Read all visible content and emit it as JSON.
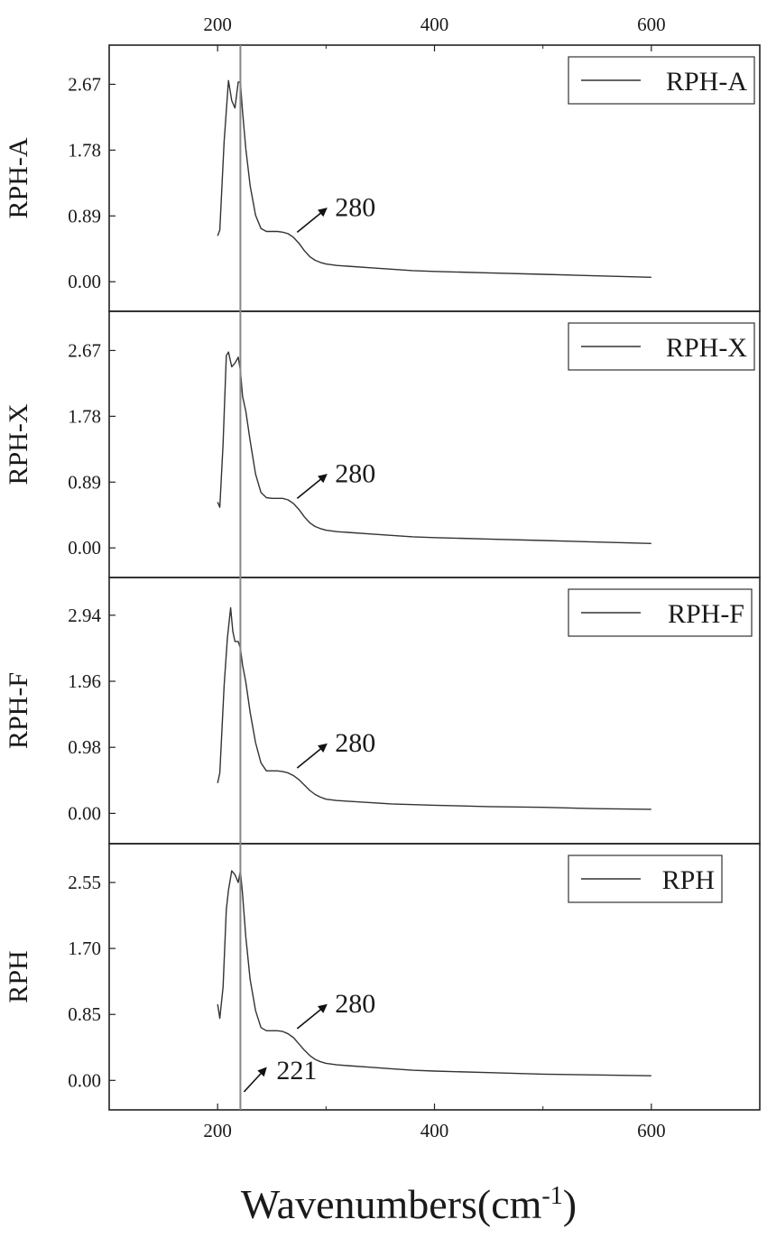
{
  "chart_data": {
    "type": "line",
    "xlabel": "Wavenumbers(cm-1)",
    "xlabel_main": "Wavenumbers(cm",
    "xlabel_sup": "-1",
    "xlabel_close": ")",
    "xlim": [
      100,
      700
    ],
    "xticks": [
      200,
      400,
      600
    ],
    "xtick_labels": [
      "200",
      "400",
      "600"
    ],
    "reference_line_x": 221,
    "annotations": [
      {
        "text": "221",
        "panel": 3
      }
    ],
    "panels": [
      {
        "ylabel": "RPH-A",
        "legend": "RPH-A",
        "ylim": [
          -0.4,
          3.2
        ],
        "yticks": [
          0.0,
          0.89,
          1.78,
          2.67
        ],
        "ytick_labels": [
          "0.00",
          "0.89",
          "1.78",
          "2.67"
        ],
        "peak_label": "280",
        "series": {
          "name": "RPH-A",
          "x": [
            200,
            202,
            206,
            210,
            213,
            216,
            219,
            221,
            223,
            226,
            230,
            235,
            240,
            245,
            250,
            255,
            260,
            265,
            270,
            275,
            280,
            285,
            290,
            295,
            300,
            310,
            320,
            340,
            360,
            380,
            400,
            450,
            500,
            550,
            600
          ],
          "y": [
            0.62,
            0.7,
            1.9,
            2.72,
            2.45,
            2.35,
            2.7,
            2.7,
            2.3,
            1.8,
            1.3,
            0.9,
            0.72,
            0.68,
            0.68,
            0.68,
            0.67,
            0.65,
            0.6,
            0.52,
            0.42,
            0.34,
            0.29,
            0.26,
            0.24,
            0.22,
            0.21,
            0.19,
            0.17,
            0.15,
            0.14,
            0.12,
            0.1,
            0.08,
            0.06
          ]
        }
      },
      {
        "ylabel": "RPH-X",
        "legend": "RPH-X",
        "ylim": [
          -0.4,
          3.2
        ],
        "yticks": [
          0.0,
          0.89,
          1.78,
          2.67
        ],
        "ytick_labels": [
          "0.00",
          "0.89",
          "1.78",
          "2.67"
        ],
        "peak_label": "280",
        "series": {
          "name": "RPH-X",
          "x": [
            200,
            202,
            205,
            208,
            210,
            213,
            216,
            219,
            221,
            223,
            226,
            230,
            235,
            240,
            245,
            250,
            255,
            260,
            265,
            270,
            275,
            280,
            285,
            290,
            295,
            300,
            310,
            320,
            340,
            360,
            380,
            400,
            450,
            500,
            550,
            600
          ],
          "y": [
            0.62,
            0.55,
            1.4,
            2.6,
            2.65,
            2.45,
            2.5,
            2.58,
            2.4,
            2.05,
            1.85,
            1.45,
            1.0,
            0.75,
            0.68,
            0.67,
            0.67,
            0.67,
            0.65,
            0.6,
            0.52,
            0.42,
            0.34,
            0.29,
            0.26,
            0.24,
            0.22,
            0.21,
            0.19,
            0.17,
            0.15,
            0.14,
            0.12,
            0.1,
            0.08,
            0.06
          ]
        }
      },
      {
        "ylabel": "RPH-F",
        "legend": "RPH-F",
        "ylim": [
          -0.45,
          3.5
        ],
        "yticks": [
          0.0,
          0.98,
          1.96,
          2.94
        ],
        "ytick_labels": [
          "0.00",
          "0.98",
          "1.96",
          "2.94"
        ],
        "peak_label": "280",
        "series": {
          "name": "RPH-F",
          "x": [
            200,
            202,
            206,
            209,
            212,
            214,
            216,
            219,
            221,
            223,
            226,
            230,
            235,
            240,
            245,
            250,
            255,
            260,
            265,
            270,
            275,
            280,
            285,
            290,
            295,
            300,
            310,
            320,
            340,
            360,
            380,
            400,
            450,
            500,
            550,
            600
          ],
          "y": [
            0.45,
            0.6,
            1.9,
            2.6,
            3.05,
            2.7,
            2.55,
            2.55,
            2.45,
            2.2,
            1.95,
            1.5,
            1.05,
            0.75,
            0.63,
            0.63,
            0.63,
            0.62,
            0.6,
            0.56,
            0.5,
            0.42,
            0.34,
            0.28,
            0.24,
            0.21,
            0.19,
            0.18,
            0.16,
            0.14,
            0.13,
            0.12,
            0.1,
            0.09,
            0.07,
            0.06
          ]
        }
      },
      {
        "ylabel": "RPH",
        "legend": "RPH",
        "ylim": [
          -0.38,
          3.05
        ],
        "yticks": [
          0.0,
          0.85,
          1.7,
          2.55
        ],
        "ytick_labels": [
          "0.00",
          "0.85",
          "1.70",
          "2.55"
        ],
        "peak_label": "280",
        "series": {
          "name": "RPH",
          "x": [
            200,
            202,
            205,
            208,
            210,
            213,
            216,
            219,
            221,
            223,
            226,
            230,
            235,
            240,
            245,
            250,
            255,
            260,
            265,
            270,
            275,
            280,
            285,
            290,
            295,
            300,
            310,
            320,
            340,
            360,
            380,
            400,
            450,
            500,
            550,
            600
          ],
          "y": [
            0.98,
            0.8,
            1.2,
            2.2,
            2.45,
            2.7,
            2.65,
            2.55,
            2.7,
            2.4,
            1.85,
            1.3,
            0.9,
            0.68,
            0.64,
            0.64,
            0.64,
            0.63,
            0.6,
            0.55,
            0.47,
            0.39,
            0.32,
            0.27,
            0.24,
            0.22,
            0.2,
            0.19,
            0.17,
            0.15,
            0.13,
            0.12,
            0.1,
            0.08,
            0.07,
            0.06
          ]
        }
      }
    ]
  }
}
